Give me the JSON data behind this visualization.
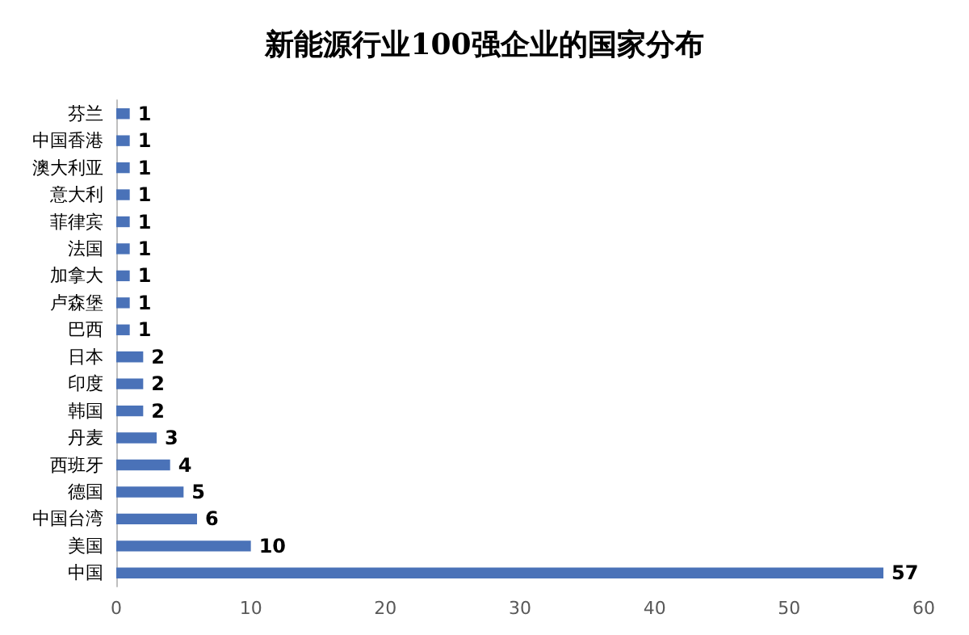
{
  "chart_data": {
    "type": "bar",
    "orientation": "horizontal",
    "title": "新能源行业100强企业的国家分布",
    "categories": [
      "芬兰",
      "中国香港",
      "澳大利亚",
      "意大利",
      "菲律宾",
      "法国",
      "加拿大",
      "卢森堡",
      "巴西",
      "日本",
      "印度",
      "韩国",
      "丹麦",
      "西班牙",
      "德国",
      "中国台湾",
      "美国",
      "中国"
    ],
    "values": [
      1,
      1,
      1,
      1,
      1,
      1,
      1,
      1,
      1,
      2,
      2,
      2,
      3,
      4,
      5,
      6,
      10,
      57
    ],
    "color": "#4a72b8",
    "xlim": [
      0,
      60
    ],
    "xticks": [
      0,
      10,
      20,
      30,
      40,
      50,
      60
    ],
    "grid": false,
    "data_labels": true
  }
}
